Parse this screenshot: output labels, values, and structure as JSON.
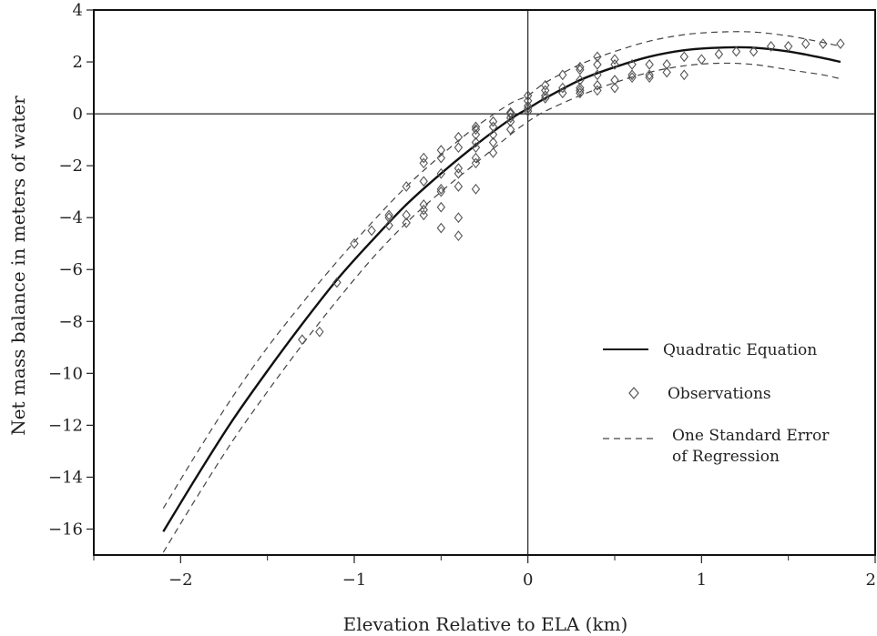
{
  "chart_data": {
    "type": "scatter",
    "xlabel": "Elevation Relative to ELA (km)",
    "ylabel": "Net mass balance in meters of water",
    "xlim": [
      -2.5,
      2.0
    ],
    "ylim": [
      -17,
      4
    ],
    "x_ticks": [
      -2,
      -1,
      0,
      1,
      2
    ],
    "x_tick_labels": [
      "−2",
      "−1",
      "0",
      "1",
      "2"
    ],
    "y_ticks": [
      4,
      2,
      0,
      -2,
      -4,
      -6,
      -8,
      -10,
      -12,
      -14,
      -16
    ],
    "y_tick_labels": [
      "4",
      "2",
      "0",
      "−2",
      "−4",
      "−6",
      "−8",
      "−10",
      "−12",
      "−14",
      "−16"
    ],
    "grid": false,
    "legend_position": "lower-right",
    "series": [
      {
        "name": "Quadratic Equation",
        "style": "solid",
        "color": "#111111",
        "x": [
          -2.1,
          -1.9,
          -1.7,
          -1.5,
          -1.3,
          -1.1,
          -0.9,
          -0.7,
          -0.5,
          -0.3,
          -0.1,
          0.0,
          0.1,
          0.3,
          0.5,
          0.7,
          0.9,
          1.1,
          1.3,
          1.5,
          1.7,
          1.8
        ],
        "y": [
          -16.1,
          -13.9,
          -11.8,
          -9.9,
          -8.1,
          -6.4,
          -4.9,
          -3.5,
          -2.3,
          -1.2,
          -0.2,
          0.2,
          0.6,
          1.3,
          1.8,
          2.2,
          2.45,
          2.55,
          2.55,
          2.4,
          2.15,
          2.0
        ]
      },
      {
        "name": "One Standard Error of Regression",
        "style": "dashed",
        "color": "#444444",
        "x": [
          -2.1,
          -1.9,
          -1.7,
          -1.5,
          -1.3,
          -1.1,
          -0.9,
          -0.7,
          -0.5,
          -0.3,
          -0.1,
          0.0,
          0.1,
          0.3,
          0.5,
          0.7,
          0.9,
          1.1,
          1.3,
          1.5,
          1.7,
          1.8
        ],
        "y_upper": [
          -15.2,
          -13.0,
          -10.9,
          -9.0,
          -7.3,
          -5.7,
          -4.2,
          -2.8,
          -1.6,
          -0.5,
          0.4,
          0.7,
          1.2,
          1.9,
          2.4,
          2.8,
          3.05,
          3.15,
          3.15,
          3.0,
          2.75,
          2.6
        ],
        "y_lower": [
          -16.9,
          -14.7,
          -12.6,
          -10.7,
          -8.9,
          -7.2,
          -5.6,
          -4.2,
          -3.0,
          -1.9,
          -0.8,
          -0.3,
          0.1,
          0.7,
          1.2,
          1.6,
          1.85,
          1.95,
          1.9,
          1.7,
          1.5,
          1.35
        ]
      },
      {
        "name": "Observations",
        "style": "diamond-marker",
        "color": "#555555",
        "points": [
          [
            -1.3,
            -8.7
          ],
          [
            -1.2,
            -8.4
          ],
          [
            -1.1,
            -6.5
          ],
          [
            -1.0,
            -5.0
          ],
          [
            -0.9,
            -4.5
          ],
          [
            -0.8,
            -4.3
          ],
          [
            -0.8,
            -4.0
          ],
          [
            -0.8,
            -3.9
          ],
          [
            -0.7,
            -4.2
          ],
          [
            -0.7,
            -3.9
          ],
          [
            -0.7,
            -2.8
          ],
          [
            -0.6,
            -3.9
          ],
          [
            -0.6,
            -3.7
          ],
          [
            -0.6,
            -3.5
          ],
          [
            -0.6,
            -2.6
          ],
          [
            -0.6,
            -1.9
          ],
          [
            -0.6,
            -1.7
          ],
          [
            -0.5,
            -4.4
          ],
          [
            -0.5,
            -3.6
          ],
          [
            -0.5,
            -3.0
          ],
          [
            -0.5,
            -2.9
          ],
          [
            -0.5,
            -2.3
          ],
          [
            -0.5,
            -1.7
          ],
          [
            -0.5,
            -1.4
          ],
          [
            -0.4,
            -4.7
          ],
          [
            -0.4,
            -4.0
          ],
          [
            -0.4,
            -2.8
          ],
          [
            -0.4,
            -2.3
          ],
          [
            -0.4,
            -2.1
          ],
          [
            -0.4,
            -1.3
          ],
          [
            -0.4,
            -0.9
          ],
          [
            -0.3,
            -2.9
          ],
          [
            -0.3,
            -1.9
          ],
          [
            -0.3,
            -1.7
          ],
          [
            -0.3,
            -1.3
          ],
          [
            -0.3,
            -1.1
          ],
          [
            -0.3,
            -0.8
          ],
          [
            -0.3,
            -0.6
          ],
          [
            -0.3,
            -0.5
          ],
          [
            -0.2,
            -1.5
          ],
          [
            -0.2,
            -1.1
          ],
          [
            -0.2,
            -0.8
          ],
          [
            -0.2,
            -0.5
          ],
          [
            -0.2,
            -0.3
          ],
          [
            -0.1,
            -0.6
          ],
          [
            -0.1,
            -0.3
          ],
          [
            -0.1,
            -0.15
          ],
          [
            -0.1,
            0.0
          ],
          [
            -0.1,
            0.05
          ],
          [
            0.0,
            0.1
          ],
          [
            0.0,
            0.2
          ],
          [
            0.0,
            0.3
          ],
          [
            0.0,
            0.5
          ],
          [
            0.0,
            0.7
          ],
          [
            0.1,
            0.6
          ],
          [
            0.1,
            0.7
          ],
          [
            0.1,
            0.9
          ],
          [
            0.1,
            1.1
          ],
          [
            0.2,
            0.8
          ],
          [
            0.2,
            1.0
          ],
          [
            0.2,
            1.5
          ],
          [
            0.3,
            0.8
          ],
          [
            0.3,
            0.9
          ],
          [
            0.3,
            1.0
          ],
          [
            0.3,
            1.3
          ],
          [
            0.3,
            1.7
          ],
          [
            0.3,
            1.8
          ],
          [
            0.4,
            0.9
          ],
          [
            0.4,
            1.1
          ],
          [
            0.4,
            1.5
          ],
          [
            0.4,
            1.9
          ],
          [
            0.4,
            2.2
          ],
          [
            0.5,
            1.0
          ],
          [
            0.5,
            1.3
          ],
          [
            0.5,
            1.9
          ],
          [
            0.5,
            2.1
          ],
          [
            0.6,
            1.4
          ],
          [
            0.6,
            1.5
          ],
          [
            0.6,
            1.9
          ],
          [
            0.7,
            1.4
          ],
          [
            0.7,
            1.5
          ],
          [
            0.7,
            1.9
          ],
          [
            0.8,
            1.6
          ],
          [
            0.8,
            1.9
          ],
          [
            0.9,
            1.5
          ],
          [
            0.9,
            2.2
          ],
          [
            1.0,
            2.1
          ],
          [
            1.1,
            2.3
          ],
          [
            1.2,
            2.4
          ],
          [
            1.3,
            2.4
          ],
          [
            1.4,
            2.6
          ],
          [
            1.5,
            2.6
          ],
          [
            1.6,
            2.7
          ],
          [
            1.7,
            2.7
          ],
          [
            1.8,
            2.7
          ]
        ]
      }
    ],
    "legend": [
      {
        "label": "Quadratic Equation",
        "style": "solid"
      },
      {
        "label": "Observations",
        "style": "diamond-marker"
      },
      {
        "label": "One Standard Error",
        "label2": "of Regression",
        "style": "dashed"
      }
    ]
  }
}
